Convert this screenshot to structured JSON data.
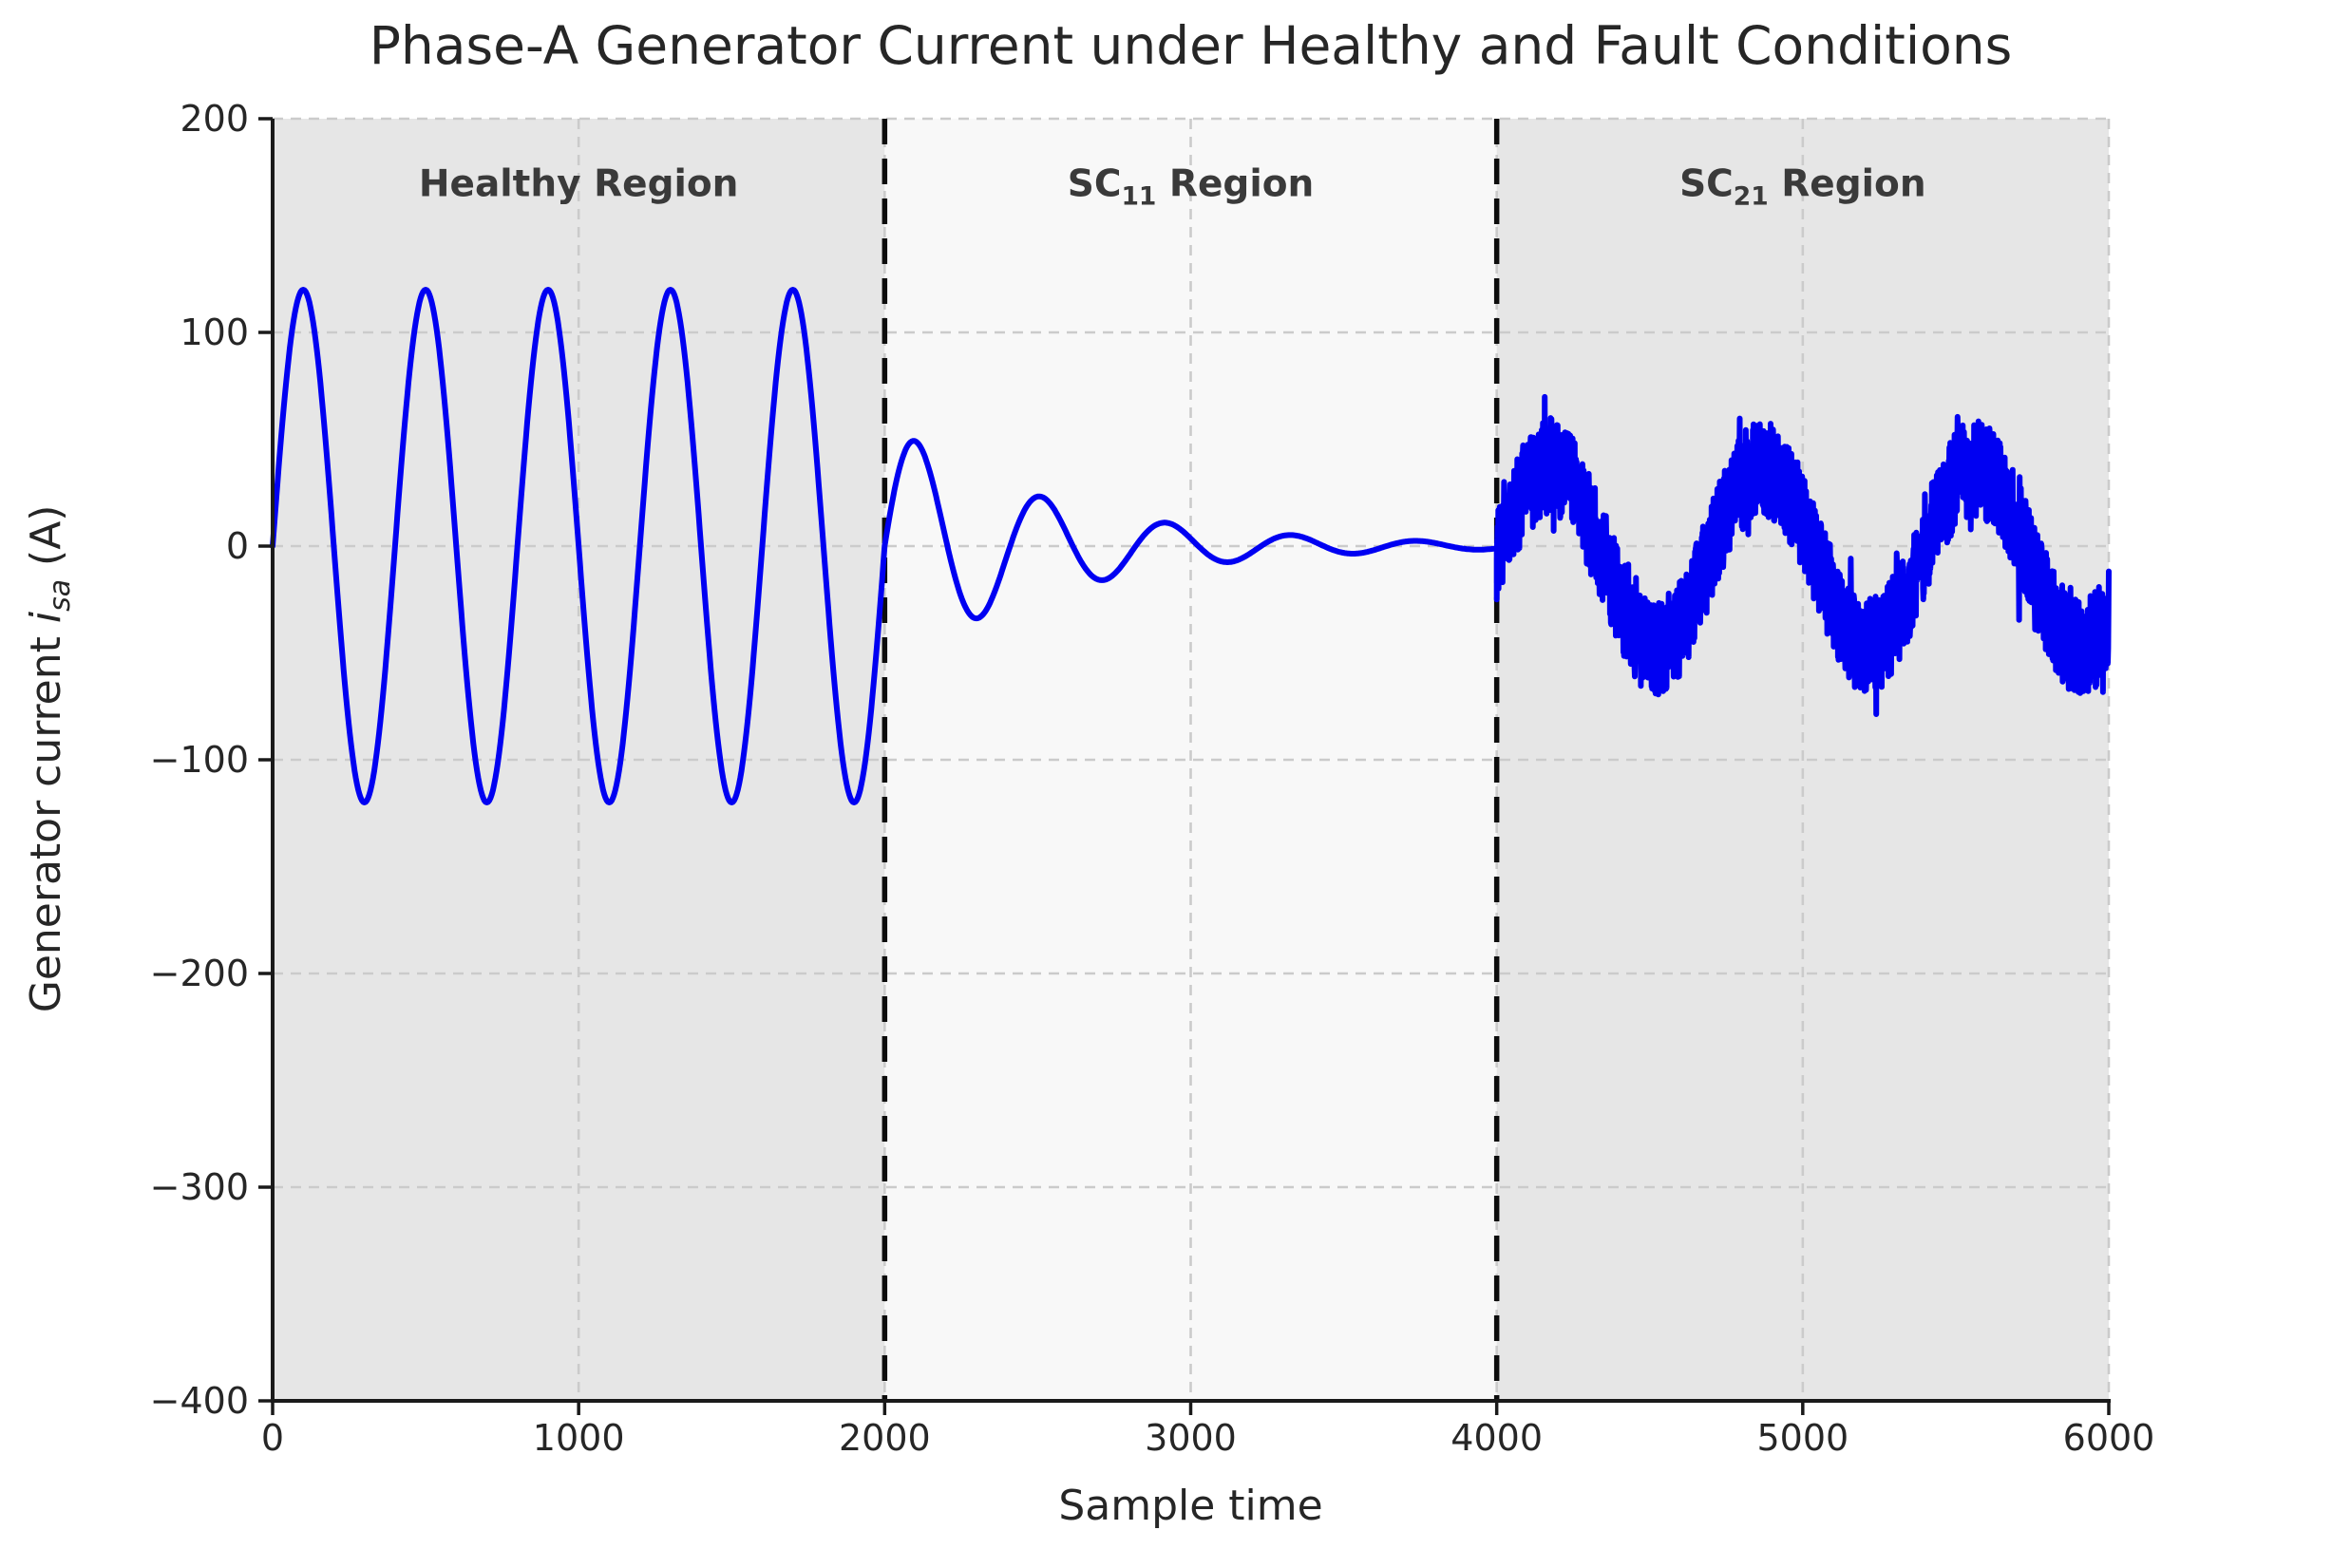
{
  "chart_data": {
    "type": "line",
    "title": "Phase-A Generator Current under Healthy and Fault Conditions",
    "xlabel": "Sample time",
    "ylabel": {
      "pre": "Generator current ",
      "var": "i",
      "sub": "sa",
      "post": " (A)"
    },
    "xlim": [
      0,
      6000
    ],
    "ylim": [
      -400,
      200
    ],
    "grid": true,
    "grid_color": "#cbcbcb",
    "axis_color": "#1a1a1a",
    "xticks": {
      "values": [
        0,
        1000,
        2000,
        3000,
        4000,
        5000,
        6000
      ],
      "labels": [
        "0",
        "1000",
        "2000",
        "3000",
        "4000",
        "5000",
        "6000"
      ]
    },
    "yticks": {
      "values": [
        200,
        100,
        0,
        -100,
        -200,
        -300,
        -400
      ],
      "labels": [
        "200",
        "100",
        "0",
        "−100",
        "−200",
        "−300",
        "−400"
      ]
    },
    "regions": [
      {
        "label": {
          "pre": "Healthy Region",
          "sub": "",
          "post": ""
        },
        "x_start": 0,
        "x_end": 2000,
        "bg": "#e6e6e6"
      },
      {
        "label": {
          "pre": "SC",
          "sub": "11",
          "post": " Region"
        },
        "x_start": 2000,
        "x_end": 4000,
        "bg": "#f8f8f8"
      },
      {
        "label": {
          "pre": "SC",
          "sub": "21",
          "post": " Region"
        },
        "x_start": 4000,
        "x_end": 6000,
        "bg": "#e6e6e6"
      }
    ],
    "boundary_lines": {
      "x_values": [
        2000,
        4000
      ],
      "color": "#0d0d0d",
      "style": "dashed"
    },
    "series": [
      {
        "name": "phase-a-current",
        "color": "#0000f2",
        "segments": [
          {
            "type": "sine",
            "t_start": 0,
            "t_end": 2000,
            "amplitude": 120,
            "period": 400,
            "phase": 0,
            "offset": 0
          },
          {
            "type": "damped_sine",
            "t_start": 2000,
            "t_end": 4000,
            "amplitude": 59,
            "period": 410,
            "tau": 546,
            "offset": 0
          },
          {
            "type": "noisy_sine",
            "t_start": 4000,
            "t_end": 6000,
            "amplitude": 42,
            "period": 695,
            "offset": -5,
            "noise_amplitude": 23
          }
        ]
      }
    ]
  }
}
